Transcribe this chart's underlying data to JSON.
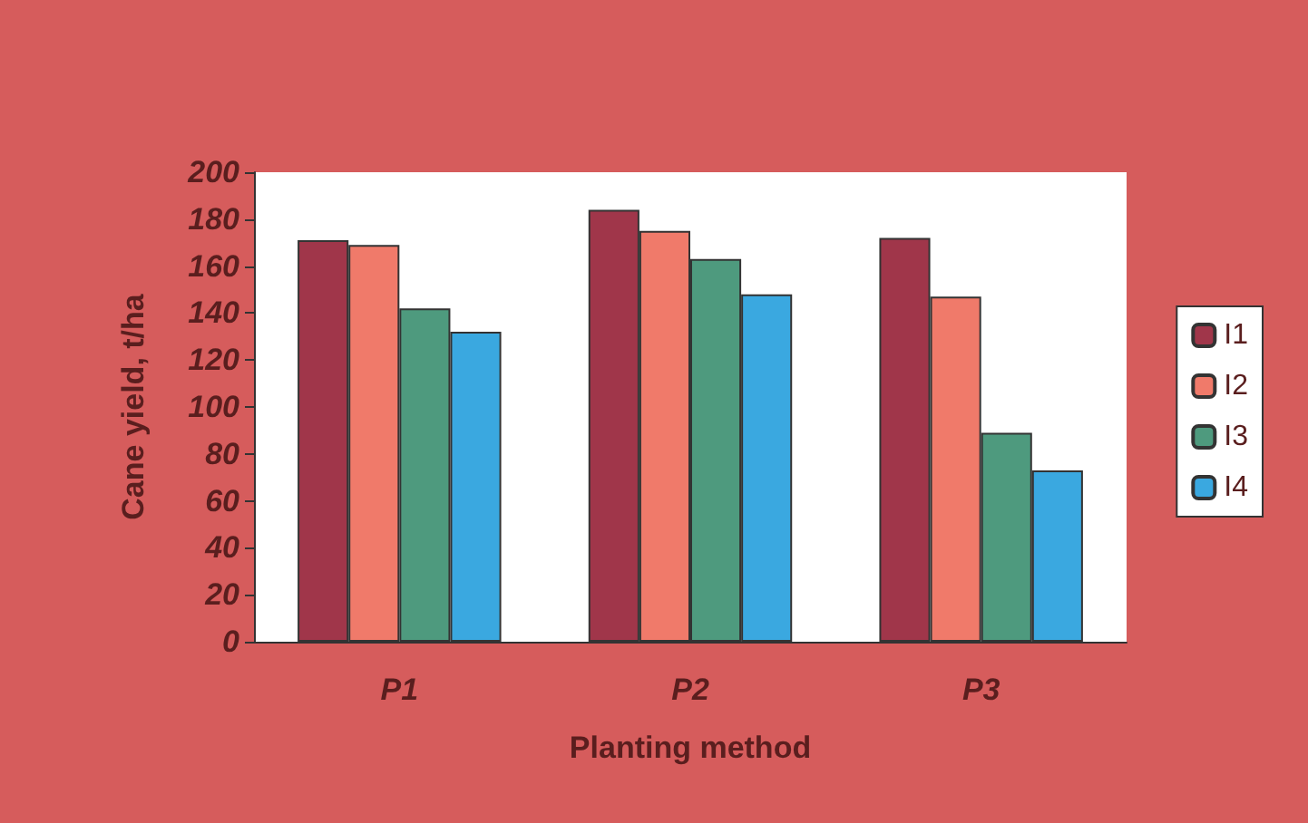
{
  "chart_data": {
    "type": "bar",
    "xlabel": "Planting method",
    "ylabel": "Cane yield, t/ha",
    "categories": [
      "P1",
      "P2",
      "P3"
    ],
    "series": [
      {
        "name": "I1",
        "color": "#a0364a",
        "values": [
          171,
          184,
          172
        ]
      },
      {
        "name": "I2",
        "color": "#f07a6a",
        "values": [
          169,
          175,
          147
        ]
      },
      {
        "name": "I3",
        "color": "#4e9a7e",
        "values": [
          142,
          163,
          89
        ]
      },
      {
        "name": "I4",
        "color": "#3aa8e0",
        "values": [
          132,
          148,
          73
        ]
      }
    ],
    "ylim": [
      0,
      200
    ],
    "yticks": [
      0,
      20,
      40,
      60,
      80,
      100,
      120,
      140,
      160,
      180,
      200
    ],
    "grid": false,
    "legend": "right"
  }
}
